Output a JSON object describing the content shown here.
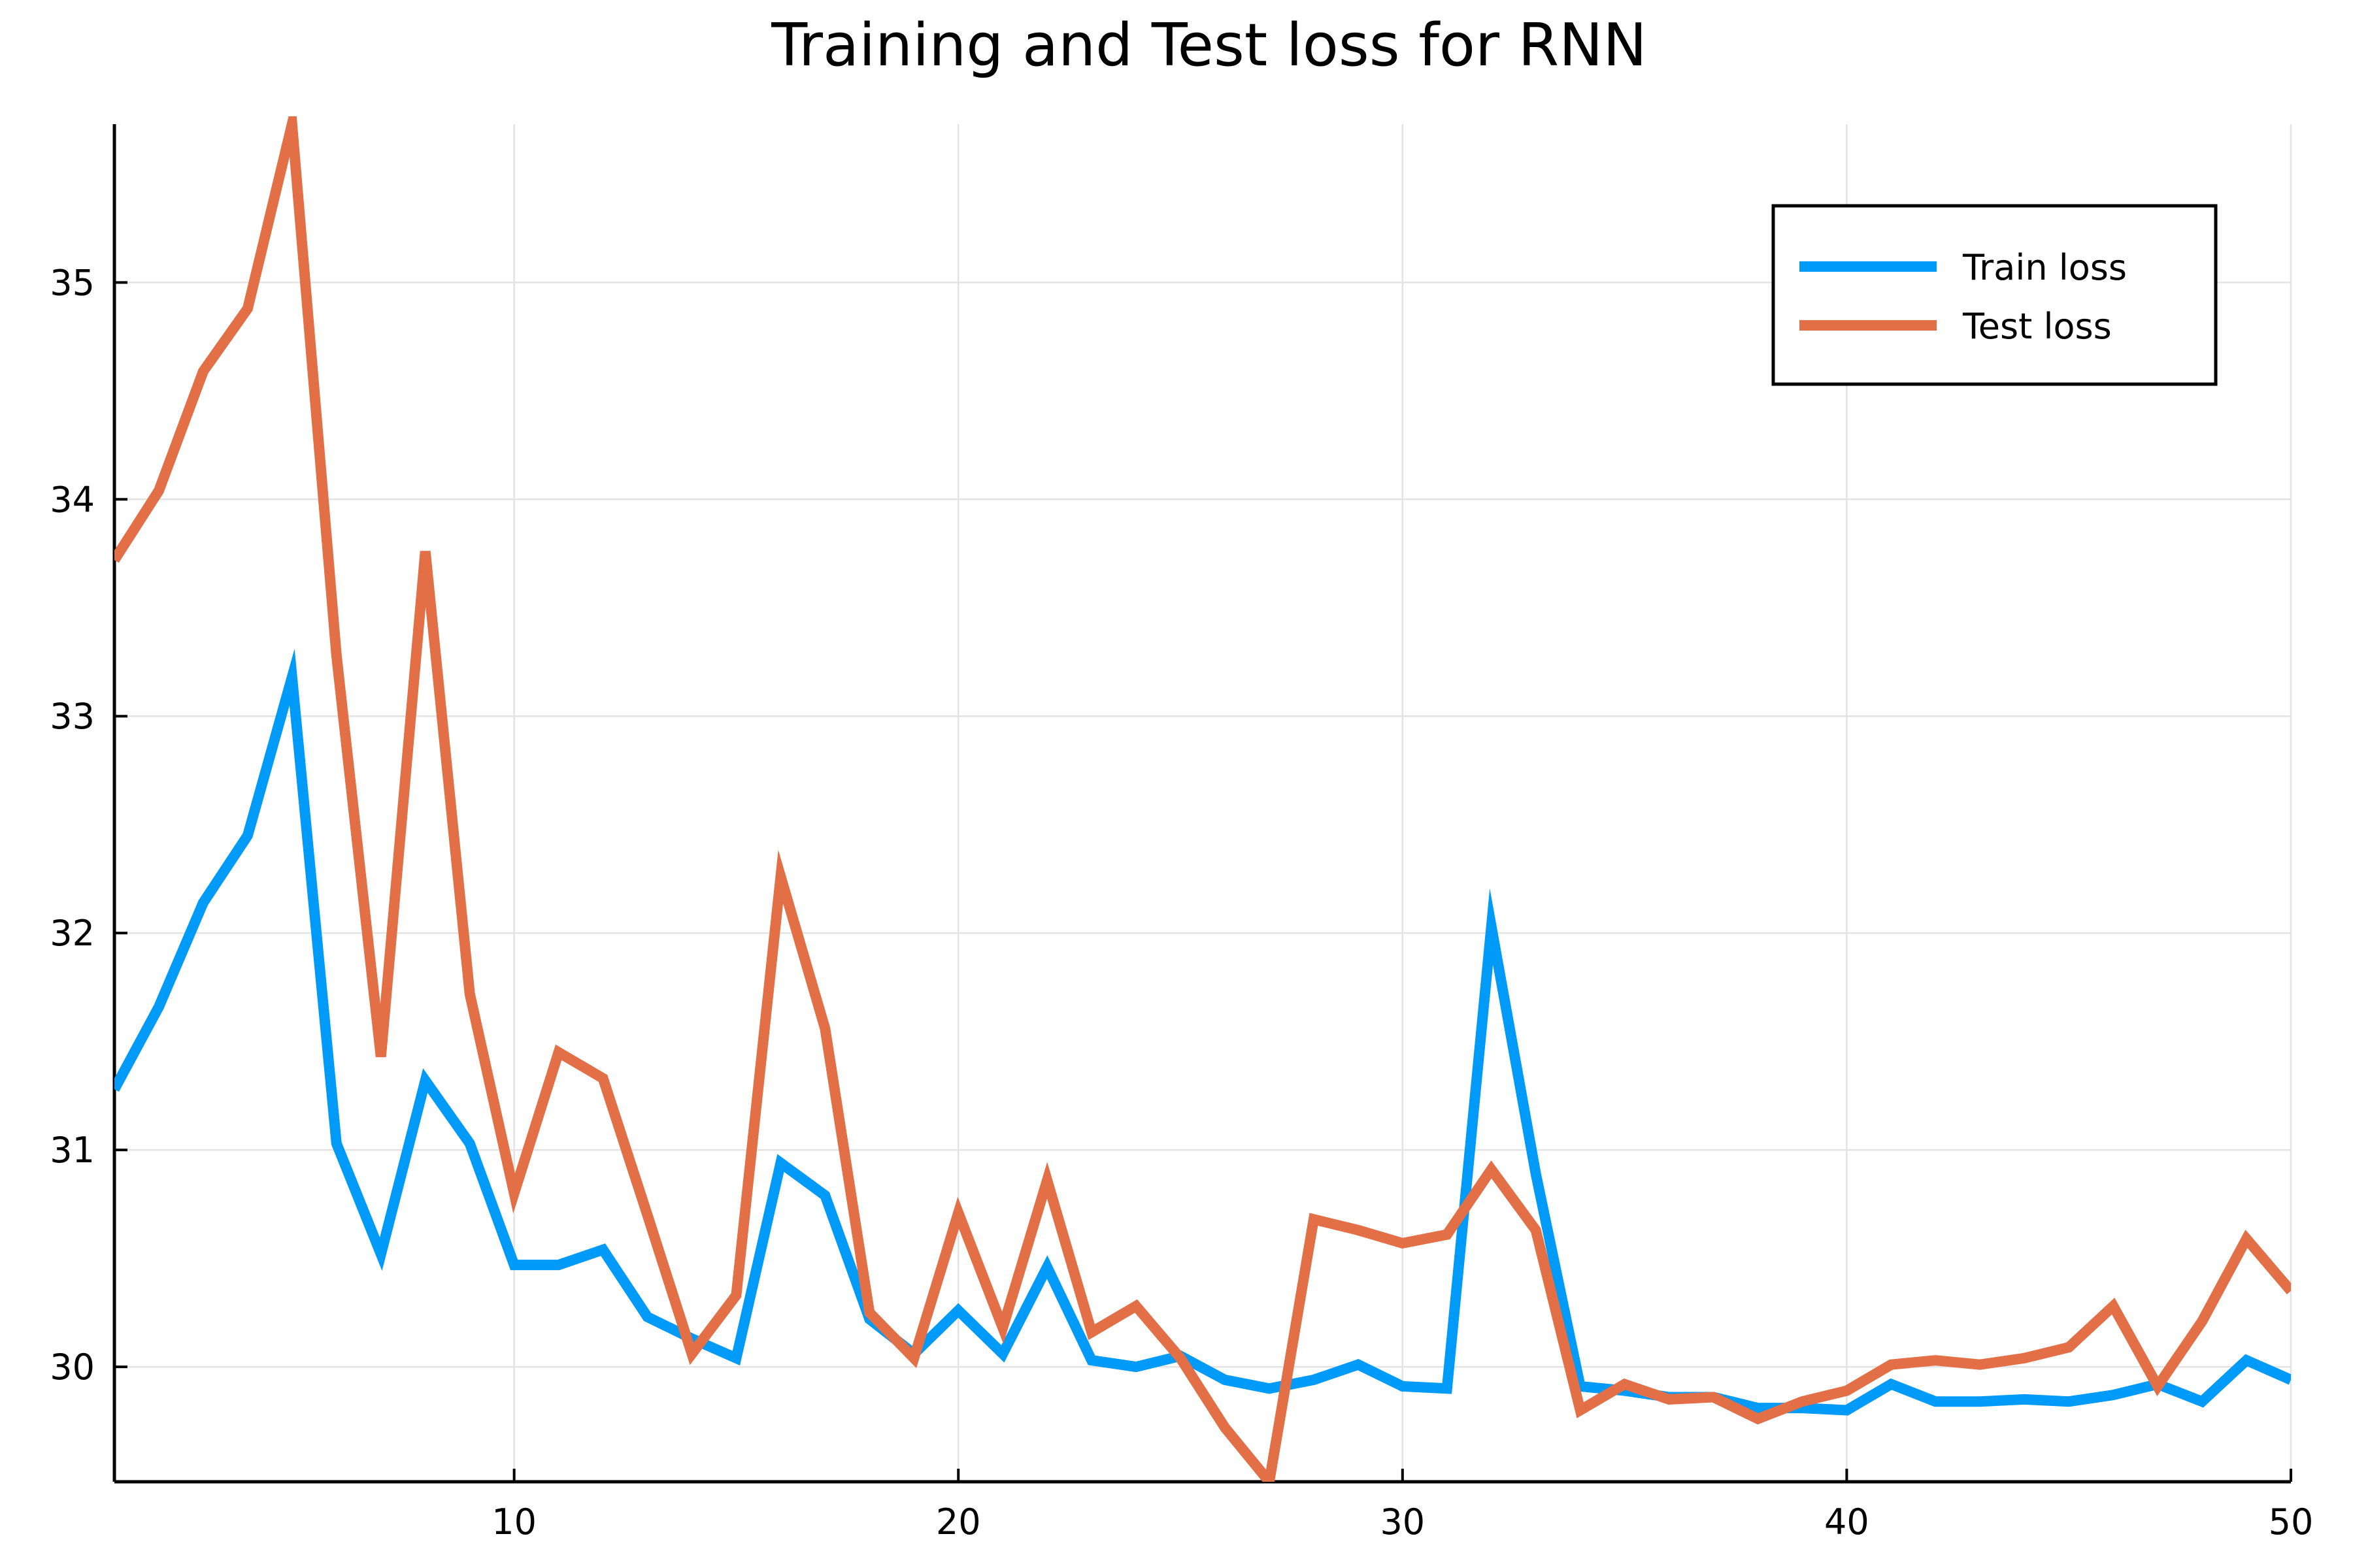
{
  "chart_data": {
    "type": "line",
    "title": "Training and Test loss for RNN",
    "xlabel": "",
    "ylabel": "",
    "xlim": [
      1,
      50
    ],
    "ylim": [
      29.47,
      35.73
    ],
    "xticks": [
      10,
      20,
      30,
      40,
      50
    ],
    "yticks": [
      30,
      31,
      32,
      33,
      34,
      35
    ],
    "grid": true,
    "legend_position": "top-right",
    "x": [
      1,
      2,
      3,
      4,
      5,
      6,
      7,
      8,
      9,
      10,
      11,
      12,
      13,
      14,
      15,
      16,
      17,
      18,
      19,
      20,
      21,
      22,
      23,
      24,
      25,
      26,
      27,
      28,
      29,
      30,
      31,
      32,
      33,
      34,
      35,
      36,
      37,
      38,
      39,
      40,
      41,
      42,
      43,
      44,
      45,
      46,
      47,
      48,
      49,
      50
    ],
    "series": [
      {
        "name": "Train loss",
        "color": "#009af9",
        "values": [
          31.28,
          31.66,
          32.14,
          32.45,
          33.18,
          31.03,
          30.52,
          31.32,
          31.03,
          30.47,
          30.47,
          30.54,
          30.23,
          30.13,
          30.04,
          30.94,
          30.79,
          30.22,
          30.06,
          30.26,
          30.06,
          30.46,
          30.03,
          30.0,
          30.05,
          29.94,
          29.9,
          29.94,
          30.01,
          29.91,
          29.9,
          32.03,
          30.89,
          29.91,
          29.89,
          29.86,
          29.86,
          29.81,
          29.81,
          29.8,
          29.92,
          29.84,
          29.84,
          29.85,
          29.84,
          29.87,
          29.92,
          29.84,
          30.03,
          29.94
        ]
      },
      {
        "name": "Test loss",
        "color": "#e26f46",
        "values": [
          33.72,
          34.04,
          34.59,
          34.88,
          35.73,
          33.28,
          31.43,
          33.76,
          31.72,
          30.8,
          31.45,
          31.33,
          30.7,
          30.06,
          30.33,
          32.26,
          31.56,
          30.25,
          30.04,
          30.71,
          30.18,
          30.86,
          30.16,
          30.28,
          30.04,
          29.72,
          29.47,
          30.68,
          30.63,
          30.57,
          30.61,
          30.91,
          30.63,
          29.8,
          29.92,
          29.85,
          29.86,
          29.76,
          29.84,
          29.89,
          30.01,
          30.03,
          30.01,
          30.04,
          30.09,
          30.28,
          29.91,
          30.21,
          30.59,
          30.35
        ]
      }
    ]
  }
}
